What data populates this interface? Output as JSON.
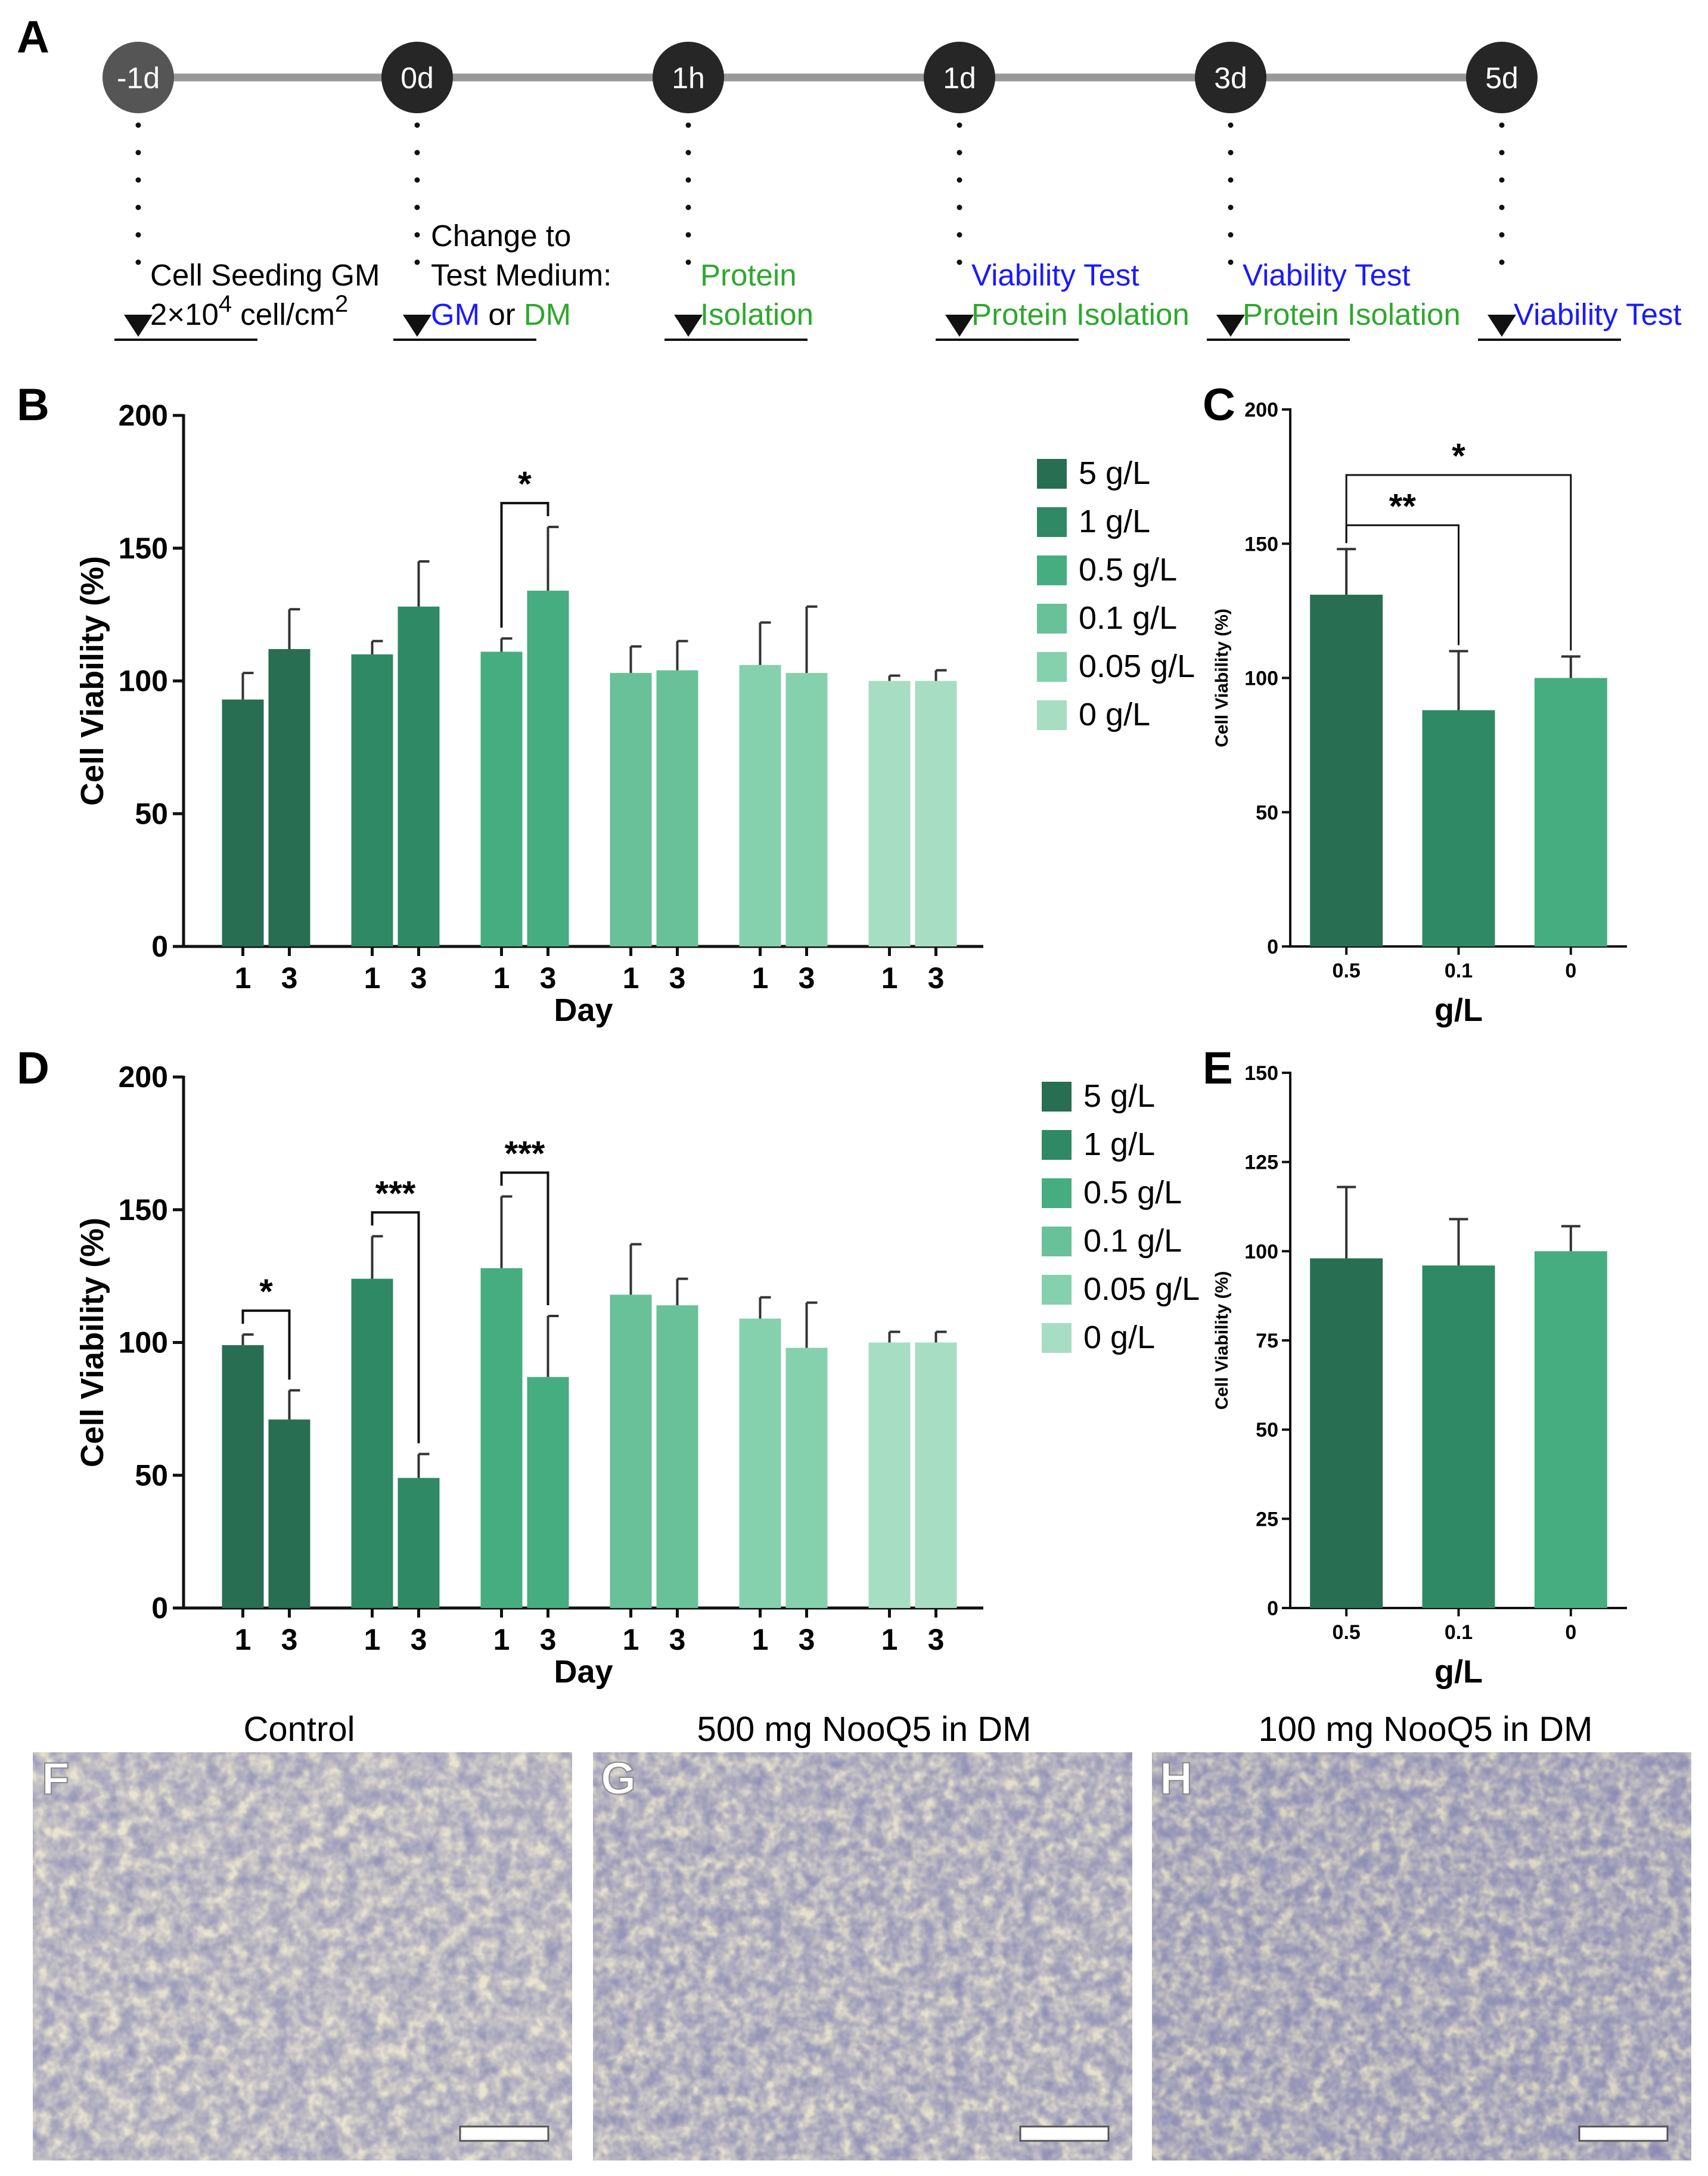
{
  "panel_labels": [
    "A",
    "B",
    "C",
    "D",
    "E",
    "F",
    "G",
    "H"
  ],
  "timeline": {
    "nodes": [
      "-1d",
      "0d",
      "1h",
      "1d",
      "3d",
      "5d"
    ],
    "steps": [
      {
        "lines": [
          [
            {
              "t": "Cell Seeding GM",
              "c": "#000000"
            }
          ],
          [
            {
              "t": "2×10",
              "c": "#000000"
            },
            {
              "t": "4",
              "c": "#000000",
              "sup": true
            },
            {
              "t": " cell/cm",
              "c": "#000000"
            },
            {
              "t": "2",
              "c": "#000000",
              "sup": true
            }
          ]
        ]
      },
      {
        "lines": [
          [
            {
              "t": "Change to",
              "c": "#000000"
            }
          ],
          [
            {
              "t": "Test Medium:",
              "c": "#000000"
            }
          ],
          [
            {
              "t": "GM",
              "c": "#1a1aff"
            },
            {
              "t": "  or ",
              "c": "#000000"
            },
            {
              "t": "DM",
              "c": "#2ea82e"
            }
          ]
        ]
      },
      {
        "lines": [
          [
            {
              "t": "Protein",
              "c": "#2ea82e"
            }
          ],
          [
            {
              "t": "Isolation",
              "c": "#2ea82e"
            }
          ]
        ]
      },
      {
        "lines": [
          [
            {
              "t": "Viability Test",
              "c": "#1a1aff"
            }
          ],
          [
            {
              "t": "Protein Isolation",
              "c": "#2ea82e"
            }
          ]
        ]
      },
      {
        "lines": [
          [
            {
              "t": "Viability Test",
              "c": "#1a1aff"
            }
          ],
          [
            {
              "t": "Protein Isolation",
              "c": "#2ea82e"
            }
          ]
        ]
      },
      {
        "lines": [
          [
            {
              "t": "Viability Test",
              "c": "#1a1aff"
            }
          ]
        ]
      }
    ]
  },
  "legend": [
    "5 g/L",
    "1 g/L",
    "0.5 g/L",
    "0.1 g/L",
    "0.05 g/L",
    "0 g/L"
  ],
  "colors": {
    "conc": [
      "#286e53",
      "#2f8964",
      "#46ad80",
      "#68c198",
      "#85d0ad",
      "#a7dec3"
    ],
    "timeline_line": "#999999",
    "node_dark": "#262626",
    "node_first": "#555555",
    "gm": "#1a1aff",
    "dm": "#2ea82e"
  },
  "chart_data": [
    {
      "panel": "B",
      "type": "bar",
      "xlabel": "Day",
      "ylabel": "Cell Viability (%)",
      "ylim": [
        0,
        200
      ],
      "yticks": [
        0,
        50,
        100,
        150,
        200
      ],
      "categories": [
        "1",
        "3"
      ],
      "series": [
        {
          "name": "5 g/L",
          "values": [
            93,
            112
          ],
          "errors": [
            10,
            15
          ]
        },
        {
          "name": "1 g/L",
          "values": [
            110,
            128
          ],
          "errors": [
            5,
            17
          ]
        },
        {
          "name": "0.5 g/L",
          "values": [
            111,
            134
          ],
          "errors": [
            5,
            24
          ]
        },
        {
          "name": "0.1 g/L",
          "values": [
            103,
            104
          ],
          "errors": [
            10,
            11
          ]
        },
        {
          "name": "0.05 g/L",
          "values": [
            106,
            103
          ],
          "errors": [
            16,
            25
          ]
        },
        {
          "name": "0 g/L",
          "values": [
            100,
            100
          ],
          "errors": [
            2,
            4
          ]
        }
      ],
      "significance": [
        {
          "group": 2,
          "label": "*"
        }
      ],
      "legend_position": "right"
    },
    {
      "panel": "C",
      "type": "bar",
      "xlabel": "g/L",
      "ylabel": "Cell Viability (%)",
      "ylim": [
        0,
        200
      ],
      "yticks": [
        0,
        50,
        100,
        150,
        200
      ],
      "categories": [
        "0.5",
        "0.1",
        "0"
      ],
      "values": [
        131,
        88,
        100
      ],
      "errors": [
        17,
        22,
        8
      ],
      "significance": [
        {
          "from": 0,
          "to": 1,
          "label": "**"
        },
        {
          "from": 0,
          "to": 2,
          "label": "*"
        }
      ]
    },
    {
      "panel": "D",
      "type": "bar",
      "xlabel": "Day",
      "ylabel": "Cell Viability (%)",
      "ylim": [
        0,
        200
      ],
      "yticks": [
        0,
        50,
        100,
        150,
        200
      ],
      "categories": [
        "1",
        "3"
      ],
      "series": [
        {
          "name": "5 g/L",
          "values": [
            99,
            71
          ],
          "errors": [
            4,
            11
          ]
        },
        {
          "name": "1 g/L",
          "values": [
            124,
            49
          ],
          "errors": [
            16,
            9
          ]
        },
        {
          "name": "0.5 g/L",
          "values": [
            128,
            87
          ],
          "errors": [
            27,
            23
          ]
        },
        {
          "name": "0.1 g/L",
          "values": [
            118,
            114
          ],
          "errors": [
            19,
            10
          ]
        },
        {
          "name": "0.05 g/L",
          "values": [
            109,
            98
          ],
          "errors": [
            8,
            17
          ]
        },
        {
          "name": "0 g/L",
          "values": [
            100,
            100
          ],
          "errors": [
            4,
            4
          ]
        }
      ],
      "significance": [
        {
          "group": 0,
          "label": "*"
        },
        {
          "group": 1,
          "label": "***"
        },
        {
          "group": 2,
          "label": "***"
        }
      ],
      "legend_position": "right"
    },
    {
      "panel": "E",
      "type": "bar",
      "xlabel": "g/L",
      "ylabel": "Cell Viability (%)",
      "ylim": [
        0,
        150
      ],
      "yticks": [
        0,
        25,
        50,
        75,
        100,
        125,
        150
      ],
      "categories": [
        "0.5",
        "0.1",
        "0"
      ],
      "values": [
        98,
        96,
        100
      ],
      "errors": [
        20,
        13,
        7
      ]
    }
  ],
  "micrographs": [
    {
      "label": "F",
      "title": "Control"
    },
    {
      "label": "G",
      "title": "500 mg NooQ5 in DM"
    },
    {
      "label": "H",
      "title": "100 mg NooQ5 in DM"
    }
  ]
}
